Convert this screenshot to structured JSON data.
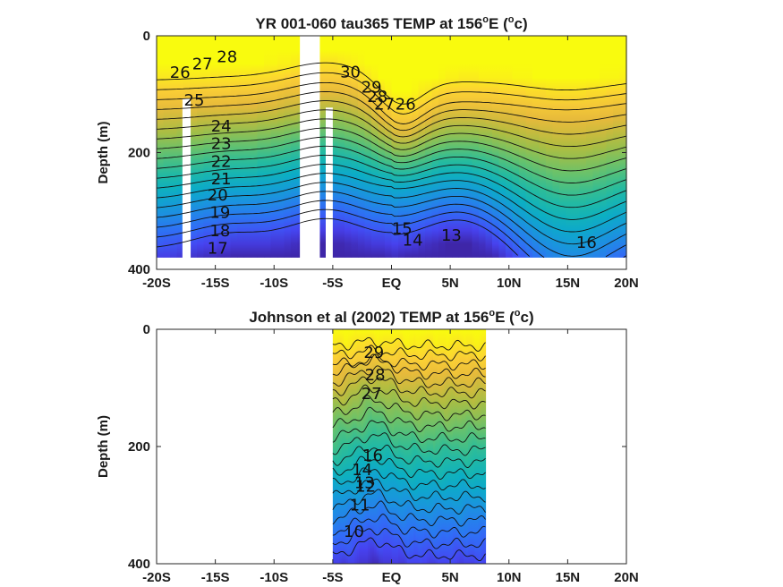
{
  "chart_data": [
    {
      "type": "contour",
      "title": "YR 001-060 tau365 TEMP at 156",
      "title_sup1": "o",
      "title_mid": "E (",
      "title_sup2": "o",
      "title_end": "c)",
      "ylabel": "Depth (m)",
      "xlim": [
        -20,
        20
      ],
      "ylim": [
        0,
        400
      ],
      "y_reversed": true,
      "x_ticks": [
        -20,
        -15,
        -10,
        -5,
        0,
        5,
        10,
        15,
        20
      ],
      "x_tick_labels": [
        "-20S",
        "-15S",
        "-10S",
        "-5S",
        "EQ",
        "5N",
        "10N",
        "15N",
        "20N"
      ],
      "y_ticks": [
        0,
        200,
        400
      ],
      "y_tick_labels": [
        "0",
        "200",
        "400"
      ],
      "data_extent": {
        "x": [
          -20,
          20
        ],
        "depth": [
          0,
          380
        ]
      },
      "gaps": [
        [
          -17.8,
          -17.1
        ],
        [
          -7.8,
          -6.1
        ],
        [
          -5.6,
          -5.0
        ]
      ],
      "colormap": "parula",
      "contour_labels": [
        {
          "text": "28",
          "x": -14,
          "depth": 36
        },
        {
          "text": "27",
          "x": -16.1,
          "depth": 48
        },
        {
          "text": "26",
          "x": -18,
          "depth": 63
        },
        {
          "text": "25",
          "x": -16.8,
          "depth": 110
        },
        {
          "text": "24",
          "x": -14.5,
          "depth": 155
        },
        {
          "text": "23",
          "x": -14.5,
          "depth": 185
        },
        {
          "text": "22",
          "x": -14.5,
          "depth": 215
        },
        {
          "text": "21",
          "x": -14.5,
          "depth": 245
        },
        {
          "text": "20",
          "x": -14.8,
          "depth": 273
        },
        {
          "text": "19",
          "x": -14.6,
          "depth": 303
        },
        {
          "text": "18",
          "x": -14.6,
          "depth": 334
        },
        {
          "text": "17",
          "x": -14.8,
          "depth": 364
        },
        {
          "text": "30",
          "x": -3.5,
          "depth": 62
        },
        {
          "text": "29",
          "x": -1.7,
          "depth": 88
        },
        {
          "text": "28",
          "x": -1.2,
          "depth": 104
        },
        {
          "text": "27",
          "x": -0.6,
          "depth": 117
        },
        {
          "text": "26",
          "x": 1.2,
          "depth": 117
        },
        {
          "text": "15",
          "x": 0.9,
          "depth": 330
        },
        {
          "text": "14",
          "x": 1.8,
          "depth": 350
        },
        {
          "text": "13",
          "x": 5.1,
          "depth": 342
        },
        {
          "text": "16",
          "x": 16.6,
          "depth": 354
        }
      ],
      "isotherm_levels": [
        30,
        29,
        28,
        27,
        26,
        25,
        24,
        23,
        22,
        21,
        20,
        19,
        18,
        17,
        16,
        15,
        14,
        13
      ]
    },
    {
      "type": "contour",
      "title": "Johnson et al (2002) TEMP at 156",
      "title_sup1": "o",
      "title_mid": "E (",
      "title_sup2": "o",
      "title_end": "c)",
      "ylabel": "Depth (m)",
      "xlim": [
        -20,
        20
      ],
      "ylim": [
        0,
        400
      ],
      "y_reversed": true,
      "x_ticks": [
        -20,
        -15,
        -10,
        -5,
        0,
        5,
        10,
        15,
        20
      ],
      "x_tick_labels": [
        "-20S",
        "-15S",
        "-10S",
        "-5S",
        "EQ",
        "5N",
        "10N",
        "15N",
        "20N"
      ],
      "y_ticks": [
        0,
        200,
        400
      ],
      "y_tick_labels": [
        "0",
        "200",
        "400"
      ],
      "data_extent": {
        "x": [
          -5,
          8
        ],
        "depth": [
          0,
          400
        ]
      },
      "colormap": "parula",
      "contour_labels": [
        {
          "text": "29",
          "x": -1.5,
          "depth": 40
        },
        {
          "text": "28",
          "x": -1.4,
          "depth": 78
        },
        {
          "text": "27",
          "x": -1.7,
          "depth": 110
        },
        {
          "text": "16",
          "x": -1.6,
          "depth": 215
        },
        {
          "text": "14",
          "x": -2.5,
          "depth": 240
        },
        {
          "text": "13",
          "x": -2.3,
          "depth": 262
        },
        {
          "text": "12",
          "x": -2.2,
          "depth": 268
        },
        {
          "text": "11",
          "x": -2.7,
          "depth": 300
        },
        {
          "text": "10",
          "x": -3.2,
          "depth": 345
        }
      ],
      "isotherm_levels": [
        29,
        28,
        27,
        26,
        25,
        24,
        23,
        22,
        21,
        20,
        19,
        18,
        17,
        16,
        15,
        14,
        13,
        12,
        11,
        10
      ]
    }
  ],
  "colors": {
    "cmap_stops": [
      "#3e26a8",
      "#4743f2",
      "#2f6ff6",
      "#1b93df",
      "#0aaec5",
      "#27bc9c",
      "#6ac26a",
      "#aebd40",
      "#e6b93b",
      "#fcd035",
      "#f9fb0e"
    ]
  }
}
